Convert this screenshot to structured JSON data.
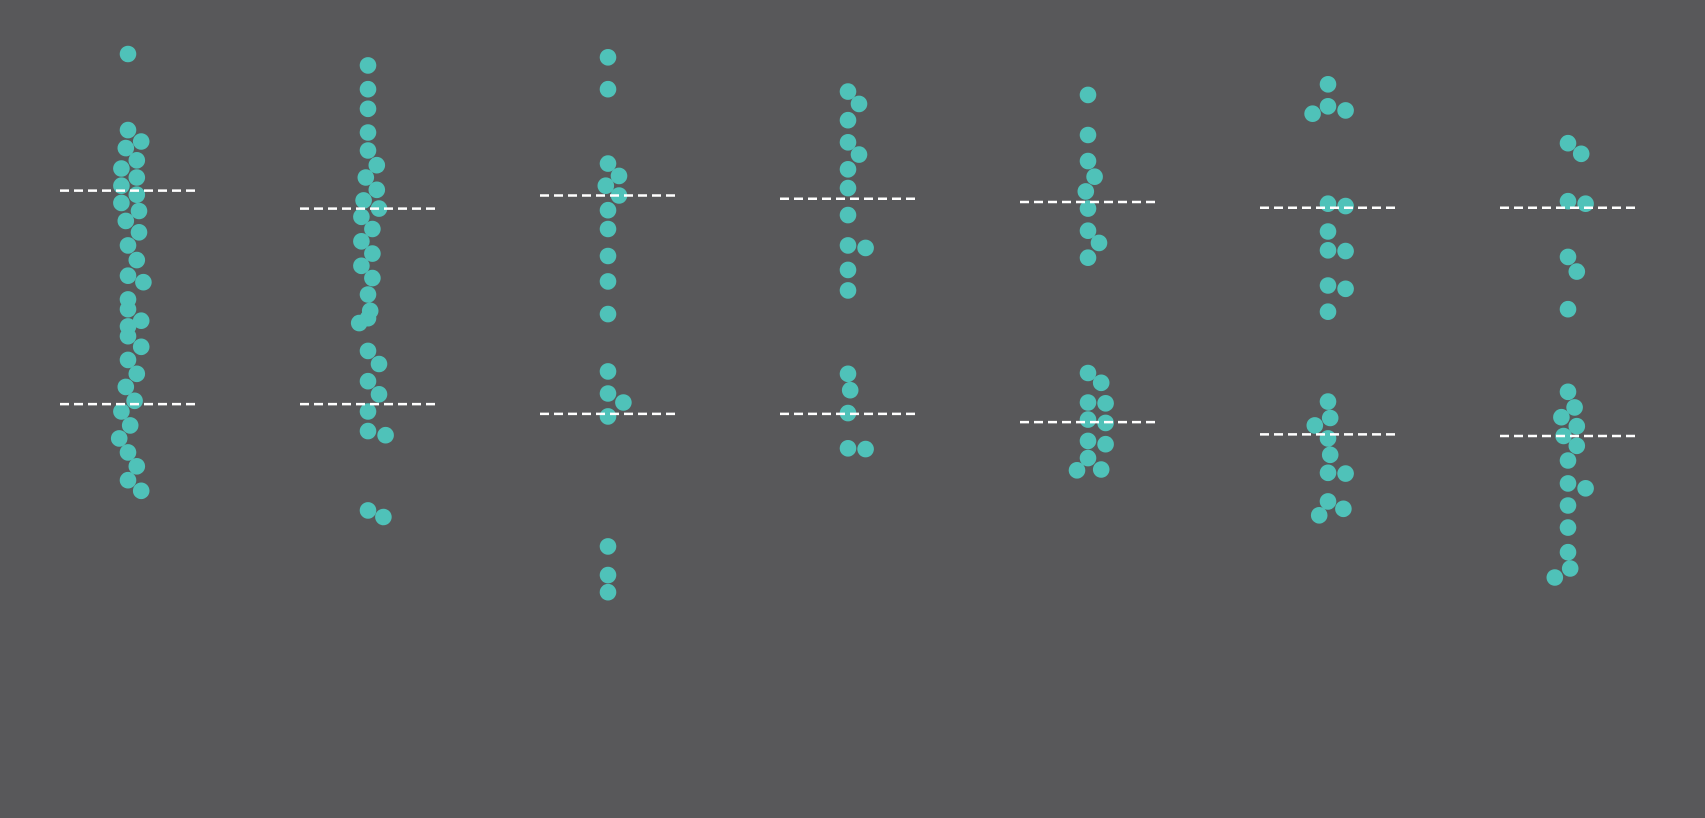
{
  "chart_data": {
    "type": "scatter",
    "variant": "beeswarm",
    "grid": false,
    "legend": "none",
    "axes_visible": false,
    "y_direction": "up",
    "ylim": [
      0,
      1
    ],
    "colors": {
      "background": "#58585a",
      "point": "#4fc2b9",
      "median_line": "#ffffff"
    },
    "rows": 2,
    "columns": 7,
    "panels": [
      {
        "median": 0.767,
        "values": [
          0.934,
          0.841,
          0.827,
          0.819,
          0.804,
          0.794,
          0.783,
          0.773,
          0.762,
          0.752,
          0.742,
          0.73,
          0.716,
          0.7,
          0.682,
          0.663,
          0.655,
          0.634,
          0.601
        ]
      },
      {
        "median": 0.745,
        "values": [
          0.92,
          0.891,
          0.867,
          0.838,
          0.816,
          0.798,
          0.783,
          0.768,
          0.755,
          0.745,
          0.735,
          0.72,
          0.705,
          0.69,
          0.675,
          0.66,
          0.64,
          0.62,
          0.605
        ]
      },
      {
        "median": 0.761,
        "values": [
          0.93,
          0.891,
          0.8,
          0.785,
          0.773,
          0.761,
          0.743,
          0.72,
          0.687,
          0.656,
          0.616
        ]
      },
      {
        "median": 0.757,
        "values": [
          0.888,
          0.873,
          0.853,
          0.826,
          0.811,
          0.793,
          0.77,
          0.737,
          0.7,
          0.697,
          0.67,
          0.645
        ]
      },
      {
        "median": 0.753,
        "values": [
          0.884,
          0.835,
          0.803,
          0.784,
          0.766,
          0.745,
          0.718,
          0.703,
          0.685
        ]
      },
      {
        "median": 0.746,
        "values": [
          0.897,
          0.87,
          0.865,
          0.861,
          0.751,
          0.748,
          0.717,
          0.693,
          0.694,
          0.651,
          0.647
        ]
      },
      {
        "median": 0.746,
        "values": [
          0.825,
          0.812,
          0.754,
          0.751,
          0.686,
          0.668
        ]
      },
      {
        "median": 0.506,
        "values": [
          0.622,
          0.608,
          0.589,
          0.576,
          0.56,
          0.543,
          0.527,
          0.51,
          0.497,
          0.48,
          0.464,
          0.447,
          0.43,
          0.413,
          0.4
        ]
      },
      {
        "median": 0.506,
        "values": [
          0.611,
          0.571,
          0.555,
          0.534,
          0.518,
          0.497,
          0.473,
          0.468,
          0.376,
          0.368
        ]
      },
      {
        "median": 0.494,
        "values": [
          0.546,
          0.519,
          0.508,
          0.491,
          0.332,
          0.297,
          0.276
        ]
      },
      {
        "median": 0.494,
        "values": [
          0.543,
          0.523,
          0.495,
          0.452,
          0.451
        ]
      },
      {
        "median": 0.484,
        "values": [
          0.544,
          0.532,
          0.508,
          0.507,
          0.487,
          0.483,
          0.461,
          0.457,
          0.44,
          0.425,
          0.426
        ]
      },
      {
        "median": 0.469,
        "values": [
          0.619,
          0.509,
          0.489,
          0.48,
          0.464,
          0.444,
          0.422,
          0.421,
          0.387,
          0.378,
          0.37
        ]
      },
      {
        "median": 0.467,
        "values": [
          0.622,
          0.521,
          0.502,
          0.49,
          0.479,
          0.467,
          0.455,
          0.437,
          0.409,
          0.403,
          0.382,
          0.355,
          0.325,
          0.305,
          0.294
        ]
      }
    ]
  }
}
